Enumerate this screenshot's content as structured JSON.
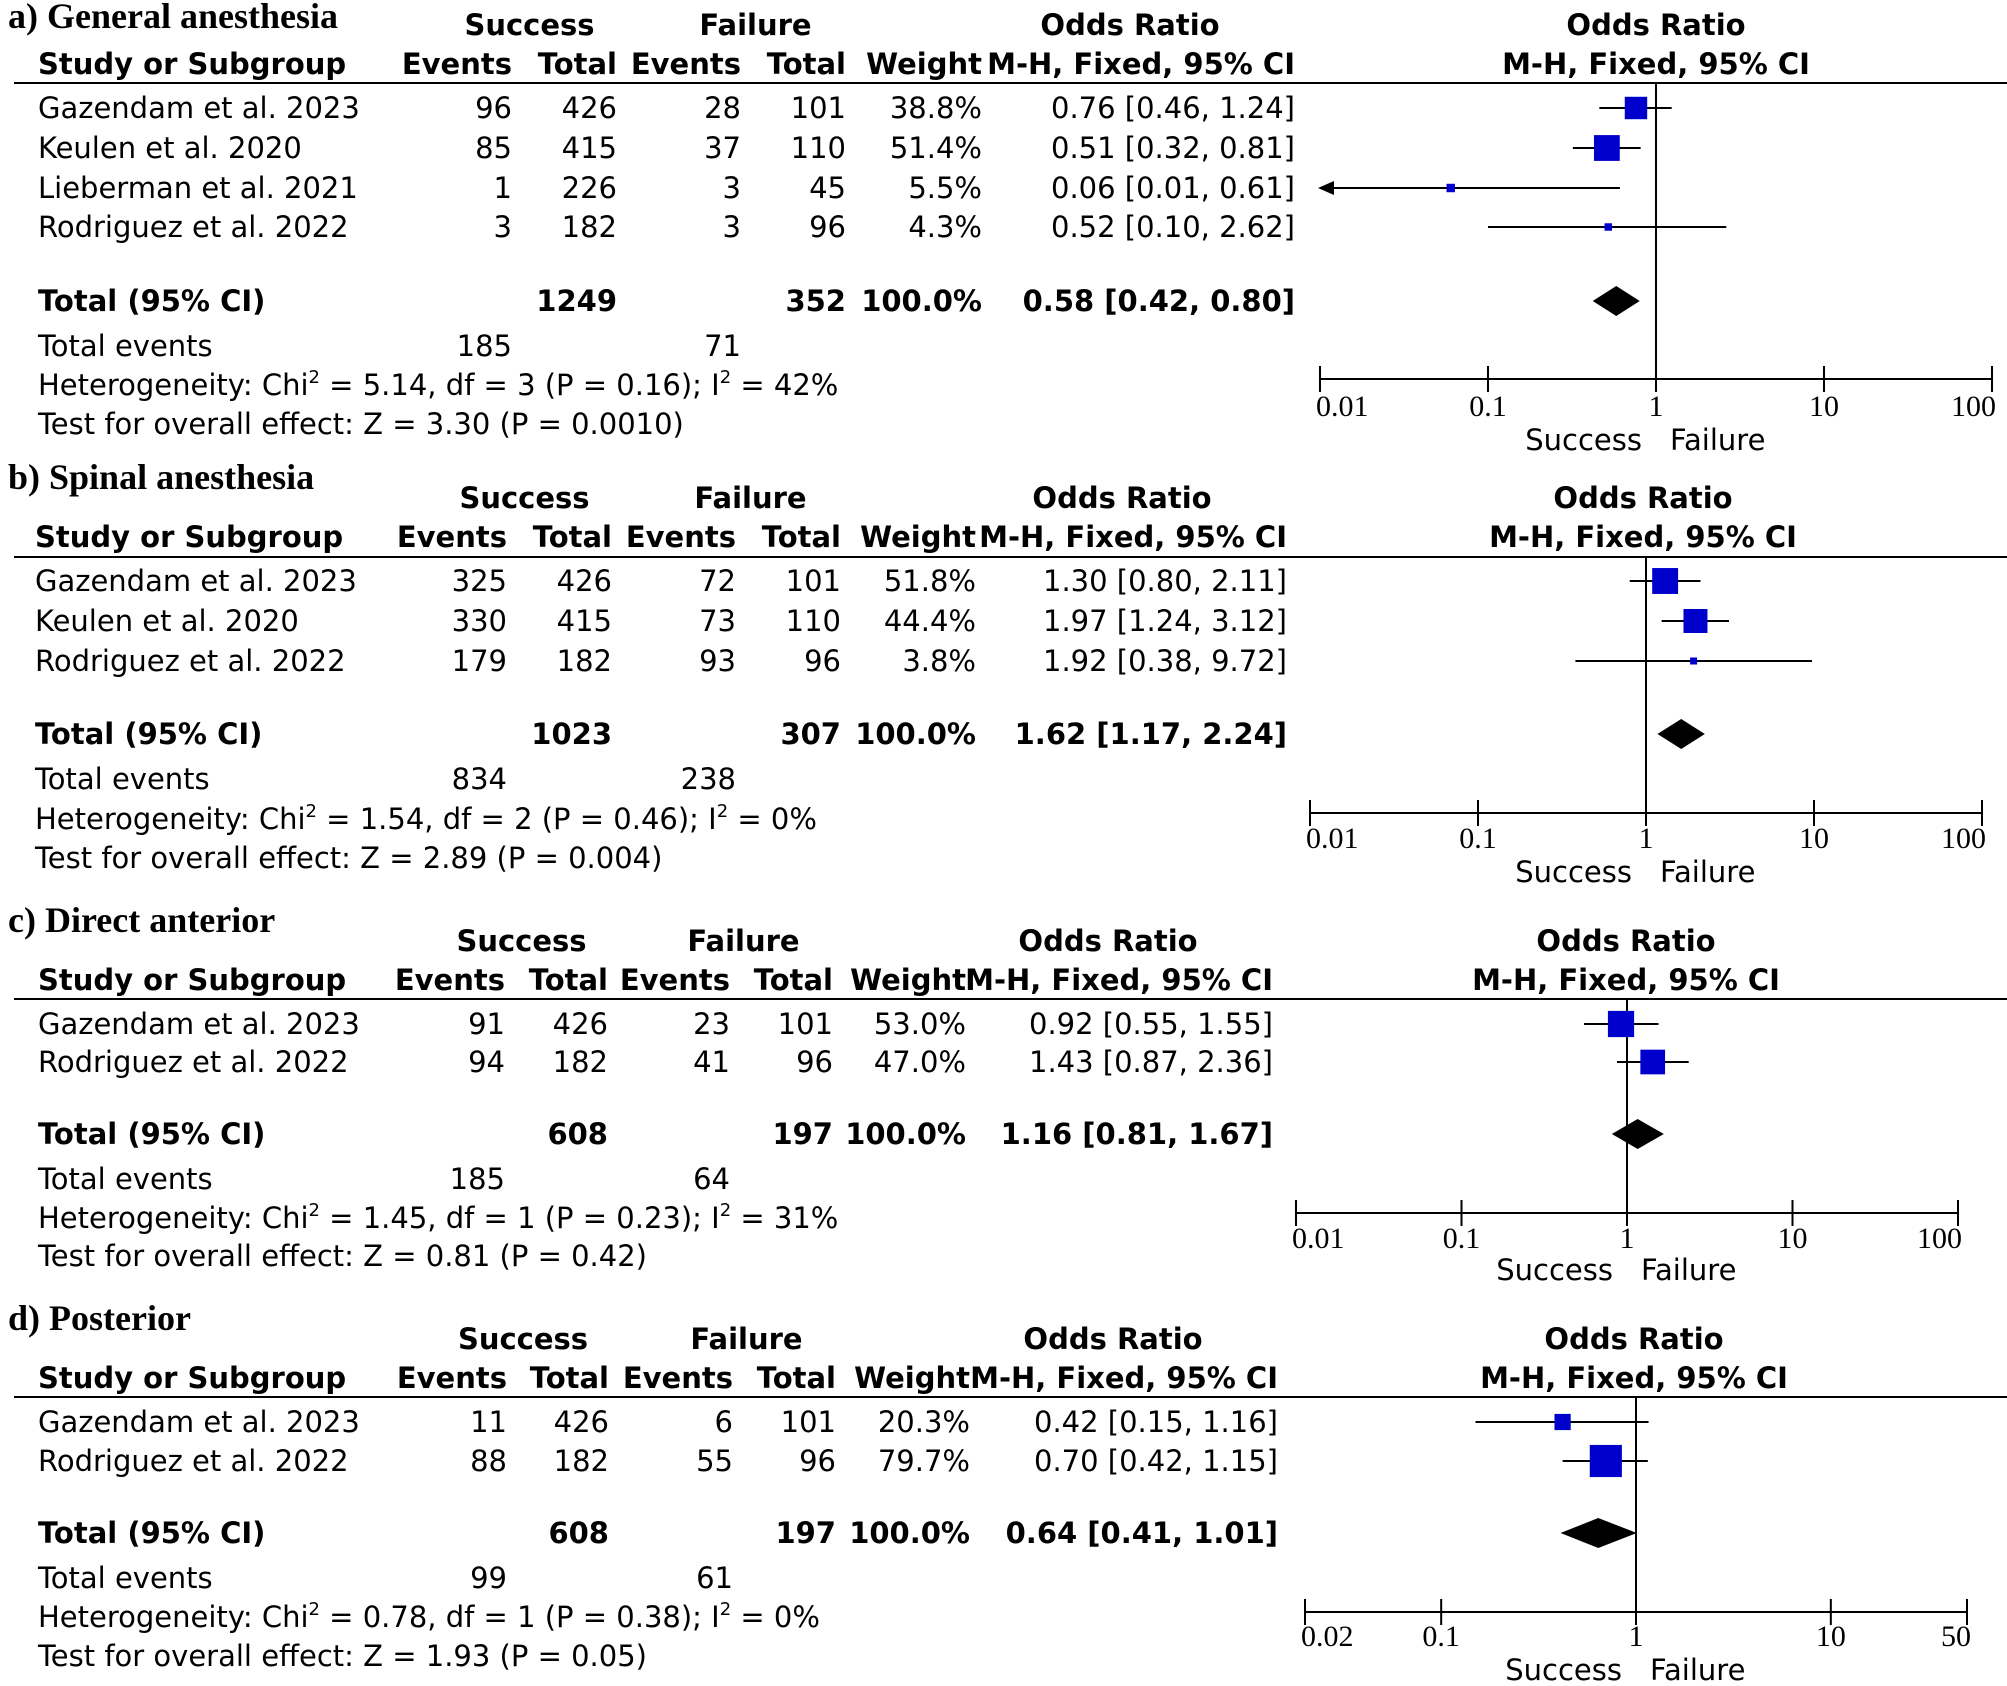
{
  "figure_type": "forest plot",
  "chart_data": [
    {
      "type": "forest",
      "title": "a) General anesthesia",
      "columns": {
        "success": "Success",
        "failure": "Failure",
        "events": "Events",
        "total": "Total",
        "study": "Study or Subgroup",
        "weight": "Weight",
        "odds_ratio": "Odds Ratio",
        "method": "M-H, Fixed, 95% CI"
      },
      "studies": [
        {
          "name": "Gazendam et al. 2023",
          "s_events": "96",
          "s_total": "426",
          "f_events": "28",
          "f_total": "101",
          "weight": "38.8%",
          "or_text": "0.76 [0.46, 1.24]",
          "or": 0.76,
          "lo": 0.46,
          "hi": 1.24,
          "w": 38.8
        },
        {
          "name": "Keulen et al. 2020",
          "s_events": "85",
          "s_total": "415",
          "f_events": "37",
          "f_total": "110",
          "weight": "51.4%",
          "or_text": "0.51 [0.32, 0.81]",
          "or": 0.51,
          "lo": 0.32,
          "hi": 0.81,
          "w": 51.4
        },
        {
          "name": "Lieberman et al. 2021",
          "s_events": "1",
          "s_total": "226",
          "f_events": "3",
          "f_total": "45",
          "weight": "5.5%",
          "or_text": "0.06 [0.01, 0.61]",
          "or": 0.06,
          "lo": 0.01,
          "hi": 0.61,
          "w": 5.5
        },
        {
          "name": "Rodriguez et al. 2022",
          "s_events": "3",
          "s_total": "182",
          "f_events": "3",
          "f_total": "96",
          "weight": "4.3%",
          "or_text": "0.52 [0.10, 2.62]",
          "or": 0.52,
          "lo": 0.1,
          "hi": 2.62,
          "w": 4.3
        }
      ],
      "total": {
        "label": "Total (95% CI)",
        "s_total": "1249",
        "f_total": "352",
        "weight": "100.0%",
        "or_text": "0.58 [0.42, 0.80]",
        "or": 0.58,
        "lo": 0.42,
        "hi": 0.8
      },
      "total_events": {
        "label": "Total events",
        "success": "185",
        "failure": "71"
      },
      "heterogeneity": {
        "prefix": "Heterogeneity: Chi",
        "rest": " = 5.14, df = 3 (P = 0.16); I",
        "rest2": " = 42%"
      },
      "overall_effect": "Test for overall effect: Z = 3.30 (P = 0.0010)",
      "axis": {
        "scale": "log",
        "min": 0.01,
        "max": 100,
        "ticks": [
          0.01,
          0.1,
          1,
          10,
          100
        ],
        "tick_labels": [
          "0.01",
          "0.1",
          "1",
          "10",
          "100"
        ],
        "left_label": "Success",
        "right_label": "Failure"
      }
    },
    {
      "type": "forest",
      "title": "b) Spinal anesthesia",
      "columns": {
        "success": "Success",
        "failure": "Failure",
        "events": "Events",
        "total": "Total",
        "study": "Study or Subgroup",
        "weight": "Weight",
        "odds_ratio": "Odds Ratio",
        "method": "M-H, Fixed, 95% CI"
      },
      "studies": [
        {
          "name": "Gazendam et al. 2023",
          "s_events": "325",
          "s_total": "426",
          "f_events": "72",
          "f_total": "101",
          "weight": "51.8%",
          "or_text": "1.30 [0.80, 2.11]",
          "or": 1.3,
          "lo": 0.8,
          "hi": 2.11,
          "w": 51.8
        },
        {
          "name": "Keulen et al. 2020",
          "s_events": "330",
          "s_total": "415",
          "f_events": "73",
          "f_total": "110",
          "weight": "44.4%",
          "or_text": "1.97 [1.24, 3.12]",
          "or": 1.97,
          "lo": 1.24,
          "hi": 3.12,
          "w": 44.4
        },
        {
          "name": "Rodriguez et al. 2022",
          "s_events": "179",
          "s_total": "182",
          "f_events": "93",
          "f_total": "96",
          "weight": "3.8%",
          "or_text": "1.92 [0.38, 9.72]",
          "or": 1.92,
          "lo": 0.38,
          "hi": 9.72,
          "w": 3.8
        }
      ],
      "total": {
        "label": "Total (95% CI)",
        "s_total": "1023",
        "f_total": "307",
        "weight": "100.0%",
        "or_text": "1.62 [1.17, 2.24]",
        "or": 1.62,
        "lo": 1.17,
        "hi": 2.24
      },
      "total_events": {
        "label": "Total events",
        "success": "834",
        "failure": "238"
      },
      "heterogeneity": {
        "prefix": "Heterogeneity: Chi",
        "rest": " = 1.54, df = 2 (P = 0.46); I",
        "rest2": " = 0%"
      },
      "overall_effect": "Test for overall effect: Z = 2.89 (P = 0.004)",
      "axis": {
        "scale": "log",
        "min": 0.01,
        "max": 100,
        "ticks": [
          0.01,
          0.1,
          1,
          10,
          100
        ],
        "tick_labels": [
          "0.01",
          "0.1",
          "1",
          "10",
          "100"
        ],
        "left_label": "Success",
        "right_label": "Failure"
      }
    },
    {
      "type": "forest",
      "title": "c) Direct anterior",
      "columns": {
        "success": "Success",
        "failure": "Failure",
        "events": "Events",
        "total": "Total",
        "study": "Study or Subgroup",
        "weight": "Weight",
        "odds_ratio": "Odds Ratio",
        "method": "M-H, Fixed, 95% CI"
      },
      "studies": [
        {
          "name": "Gazendam et al. 2023",
          "s_events": "91",
          "s_total": "426",
          "f_events": "23",
          "f_total": "101",
          "weight": "53.0%",
          "or_text": "0.92 [0.55, 1.55]",
          "or": 0.92,
          "lo": 0.55,
          "hi": 1.55,
          "w": 53.0
        },
        {
          "name": "Rodriguez et al. 2022",
          "s_events": "94",
          "s_total": "182",
          "f_events": "41",
          "f_total": "96",
          "weight": "47.0%",
          "or_text": "1.43 [0.87, 2.36]",
          "or": 1.43,
          "lo": 0.87,
          "hi": 2.36,
          "w": 47.0
        }
      ],
      "total": {
        "label": "Total (95% CI)",
        "s_total": "608",
        "f_total": "197",
        "weight": "100.0%",
        "or_text": "1.16 [0.81, 1.67]",
        "or": 1.16,
        "lo": 0.81,
        "hi": 1.67
      },
      "total_events": {
        "label": "Total events",
        "success": "185",
        "failure": "64"
      },
      "heterogeneity": {
        "prefix": "Heterogeneity: Chi",
        "rest": " = 1.45, df = 1 (P = 0.23); I",
        "rest2": " = 31%"
      },
      "overall_effect": "Test for overall effect: Z = 0.81 (P = 0.42)",
      "axis": {
        "scale": "log",
        "min": 0.01,
        "max": 100,
        "ticks": [
          0.01,
          0.1,
          1,
          10,
          100
        ],
        "tick_labels": [
          "0.01",
          "0.1",
          "1",
          "10",
          "100"
        ],
        "left_label": "Success",
        "right_label": "Failure"
      }
    },
    {
      "type": "forest",
      "title": "d) Posterior",
      "columns": {
        "success": "Success",
        "failure": "Failure",
        "events": "Events",
        "total": "Total",
        "study": "Study or Subgroup",
        "weight": "Weight",
        "odds_ratio": "Odds Ratio",
        "method": "M-H, Fixed, 95% CI"
      },
      "studies": [
        {
          "name": "Gazendam et al. 2023",
          "s_events": "11",
          "s_total": "426",
          "f_events": "6",
          "f_total": "101",
          "weight": "20.3%",
          "or_text": "0.42 [0.15, 1.16]",
          "or": 0.42,
          "lo": 0.15,
          "hi": 1.16,
          "w": 20.3
        },
        {
          "name": "Rodriguez et al. 2022",
          "s_events": "88",
          "s_total": "182",
          "f_events": "55",
          "f_total": "96",
          "weight": "79.7%",
          "or_text": "0.70 [0.42, 1.15]",
          "or": 0.7,
          "lo": 0.42,
          "hi": 1.15,
          "w": 79.7
        }
      ],
      "total": {
        "label": "Total (95% CI)",
        "s_total": "608",
        "f_total": "197",
        "weight": "100.0%",
        "or_text": "0.64 [0.41, 1.01]",
        "or": 0.64,
        "lo": 0.41,
        "hi": 1.01
      },
      "total_events": {
        "label": "Total events",
        "success": "99",
        "failure": "61"
      },
      "heterogeneity": {
        "prefix": "Heterogeneity: Chi",
        "rest": " = 0.78, df = 1 (P = 0.38); I",
        "rest2": " = 0%"
      },
      "overall_effect": "Test for overall effect: Z = 1.93 (P = 0.05)",
      "axis": {
        "scale": "log",
        "min": 0.02,
        "max": 50,
        "ticks": [
          0.02,
          0.1,
          1,
          10,
          50
        ],
        "tick_labels": [
          "0.02",
          "0.1",
          "1",
          "10",
          "50"
        ],
        "left_label": "Success",
        "right_label": "Failure"
      }
    }
  ],
  "colors": {
    "square": "#0000cc",
    "diamond": "#000000",
    "line": "#000000"
  }
}
